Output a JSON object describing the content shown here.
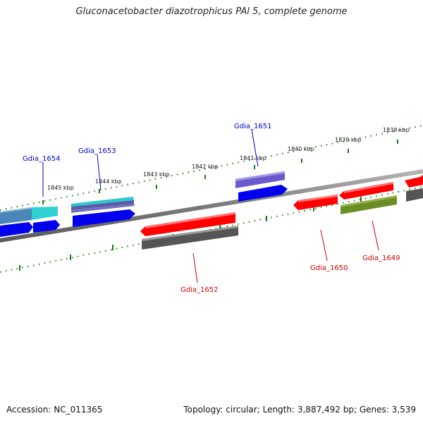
{
  "title": "Gluconacetobacter diazotrophicus PAl 5, complete genome",
  "footer": {
    "accession_label": "Accession:",
    "accession": "NC_011365",
    "topology_label": "Topology:",
    "topology": "circular",
    "length_label": "Length:",
    "length": "3,887,492 bp",
    "genes_label": "Genes:",
    "genes": "3,539"
  },
  "colors": {
    "backbone": "#8a8a8a",
    "tick": "#1a7a1a",
    "forward_label": "#0000cc",
    "reverse_label": "#cc0000"
  },
  "ticks": [
    {
      "label": "1845 kbp"
    },
    {
      "label": "1844 kbp"
    },
    {
      "label": "1843 kbp"
    },
    {
      "label": "1842 kbp"
    },
    {
      "label": "1841 kbp"
    },
    {
      "label": "1840 kbp"
    },
    {
      "label": "1839 kbp"
    },
    {
      "label": "1838 kbp"
    }
  ],
  "gene_labels": [
    {
      "name": "Gdia_1654",
      "strand": "forward"
    },
    {
      "name": "Gdia_1653",
      "strand": "forward"
    },
    {
      "name": "Gdia_1651",
      "strand": "forward"
    },
    {
      "name": "Gdia_1652",
      "strand": "reverse"
    },
    {
      "name": "Gdia_1650",
      "strand": "reverse"
    },
    {
      "name": "Gdia_1649",
      "strand": "reverse"
    }
  ]
}
